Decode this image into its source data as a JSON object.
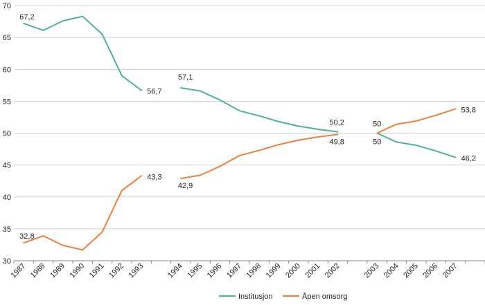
{
  "chart_data": {
    "type": "line",
    "title": "",
    "xlabel": "",
    "ylabel": "",
    "ylim": [
      30,
      70
    ],
    "yticks": [
      30,
      35,
      40,
      45,
      50,
      55,
      60,
      65,
      70
    ],
    "grid": true,
    "legend_position": "bottom",
    "categories": [
      "1987",
      "1988",
      "1989",
      "1990",
      "1991",
      "1992",
      "1993",
      "",
      "1994",
      "1995",
      "1996",
      "1997",
      "1998",
      "1999",
      "2000",
      "2001",
      "2002",
      "",
      "2003",
      "2004",
      "2005",
      "2006",
      "2007",
      ""
    ],
    "series": [
      {
        "name": "Institusjon",
        "color": "#4db38a",
        "segments": [
          {
            "start": 0,
            "values": [
              67.2,
              66.1,
              67.6,
              68.3,
              65.5,
              59.0,
              56.7
            ]
          },
          {
            "start": 8,
            "values": [
              57.1,
              56.6,
              55.2,
              53.5,
              52.7,
              51.8,
              51.1,
              50.6,
              50.2
            ]
          },
          {
            "start": 18,
            "values": [
              50.0,
              48.6,
              48.1,
              47.2,
              46.2
            ]
          }
        ],
        "labels": [
          {
            "index": 0,
            "text": "67,2"
          },
          {
            "index": 6,
            "text": "56,7"
          },
          {
            "index": 8,
            "text": "57,1"
          },
          {
            "index": 16,
            "text": "50,2"
          },
          {
            "index": 18,
            "text": "50"
          },
          {
            "index": 22,
            "text": "46,2"
          }
        ]
      },
      {
        "name": "Åpen omsorg",
        "color": "#f07f3c",
        "segments": [
          {
            "start": 0,
            "values": [
              32.8,
              33.9,
              32.4,
              31.7,
              34.5,
              41.0,
              43.3
            ]
          },
          {
            "start": 8,
            "values": [
              42.9,
              43.4,
              44.8,
              46.5,
              47.3,
              48.2,
              48.9,
              49.4,
              49.8
            ]
          },
          {
            "start": 18,
            "values": [
              50.0,
              51.4,
              51.9,
              52.8,
              53.8
            ]
          }
        ],
        "labels": [
          {
            "index": 0,
            "text": "32,8"
          },
          {
            "index": 6,
            "text": "43,3"
          },
          {
            "index": 8,
            "text": "42,9"
          },
          {
            "index": 16,
            "text": "49,8"
          },
          {
            "index": 18,
            "text": "50"
          },
          {
            "index": 22,
            "text": "53,8"
          }
        ]
      }
    ]
  }
}
